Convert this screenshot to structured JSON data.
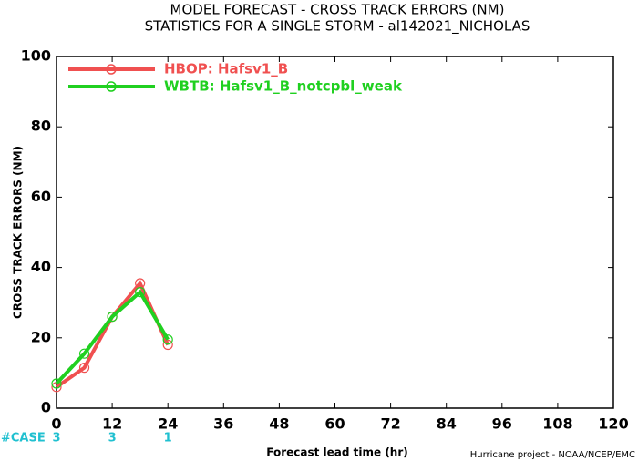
{
  "chart_data": {
    "type": "line",
    "title": "MODEL FORECAST - CROSS TRACK ERRORS (NM)",
    "subtitle": "STATISTICS FOR A SINGLE STORM - al142021_NICHOLAS",
    "x_label": "Forecast lead time (hr)",
    "y_label": "CROSS TRACK ERRORS (NM)",
    "footer": "Hurricane project - NOAA/NCEP/EMC",
    "x": [
      0,
      6,
      12,
      18,
      24
    ],
    "series": [
      {
        "name": "HBOP: Hafsv1_B",
        "color": "#f05050",
        "values": [
          6,
          11.5,
          26,
          35.5,
          18
        ]
      },
      {
        "name": "WBTB: Hafsv1_B_notcpbl_weak",
        "color": "#20d020",
        "values": [
          7,
          15.5,
          26,
          33,
          19.5
        ]
      }
    ],
    "cases": {
      "label": "#CASE",
      "x": [
        0,
        12,
        24
      ],
      "values": [
        3,
        3,
        1
      ]
    },
    "xlim": [
      0,
      120
    ],
    "xticks": [
      0,
      12,
      24,
      36,
      48,
      60,
      72,
      84,
      96,
      108,
      120
    ],
    "ylim": [
      0,
      100
    ],
    "yticks": [
      0,
      20,
      40,
      60,
      80,
      100
    ],
    "legend": "upper left"
  }
}
